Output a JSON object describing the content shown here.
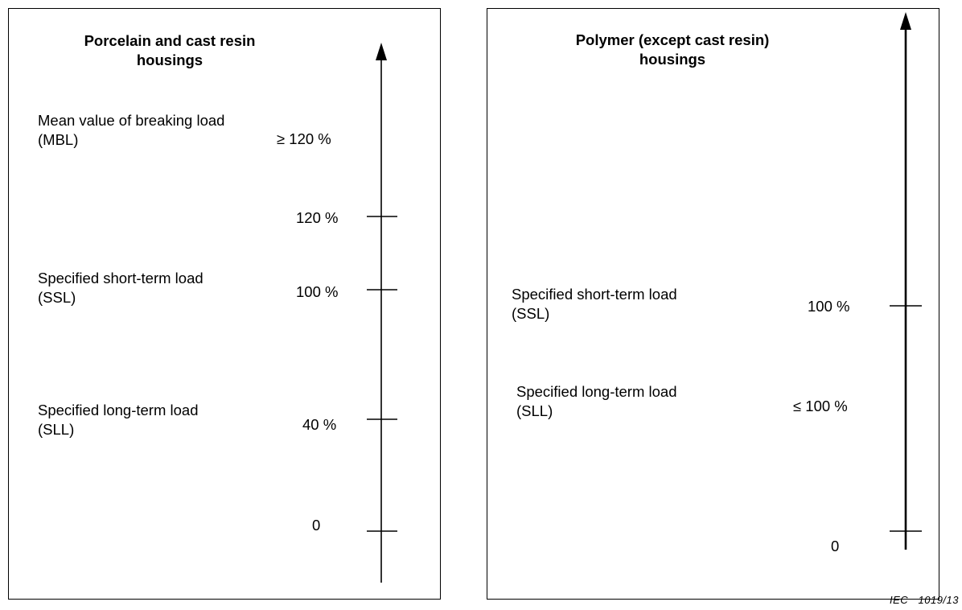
{
  "left_panel": {
    "title": "Porcelain and cast resin\nhousings",
    "levels": [
      {
        "label": "Mean value of breaking load\n(MBL)",
        "value": "≥ 120 %"
      },
      {
        "label": "",
        "value": "120 %",
        "tick": true
      },
      {
        "label": "Specified short-term load\n(SSL)",
        "value": "100 %",
        "tick": true
      },
      {
        "label": "Specified long-term load\n(SLL)",
        "value": "40 %",
        "tick": true
      },
      {
        "label": "",
        "value": "0",
        "tick": true
      }
    ]
  },
  "right_panel": {
    "title": "Polymer (except cast resin)\nhousings",
    "levels": [
      {
        "label": "Specified short-term load\n(SSL)",
        "value": "100 %",
        "tick": true
      },
      {
        "label": "Specified long-term load\n(SLL)",
        "value": "≤ 100 %"
      },
      {
        "label": "",
        "value": "0",
        "tick": true
      }
    ]
  },
  "footer": "IEC   1019/13"
}
